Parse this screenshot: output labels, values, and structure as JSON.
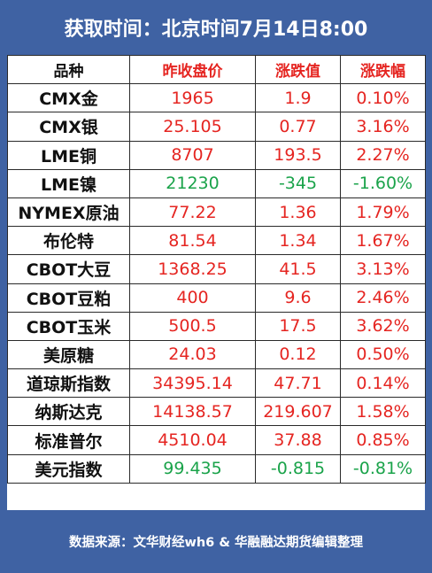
{
  "header": {
    "title": "获取时间：北京时间7月14日8:00"
  },
  "table": {
    "columns": [
      "品种",
      "昨收盘价",
      "涨跌值",
      "涨跌幅"
    ],
    "rows": [
      {
        "name": "CMX金",
        "close": "1965",
        "change": "1.9",
        "pct": "0.10%",
        "dir": "up"
      },
      {
        "name": "CMX银",
        "close": "25.105",
        "change": "0.77",
        "pct": "3.16%",
        "dir": "up"
      },
      {
        "name": "LME铜",
        "close": "8707",
        "change": "193.5",
        "pct": "2.27%",
        "dir": "up"
      },
      {
        "name": "LME镍",
        "close": "21230",
        "change": "-345",
        "pct": "-1.60%",
        "dir": "down"
      },
      {
        "name": "NYMEX原油",
        "close": "77.22",
        "change": "1.36",
        "pct": "1.79%",
        "dir": "up"
      },
      {
        "name": "布伦特",
        "close": "81.54",
        "change": "1.34",
        "pct": "1.67%",
        "dir": "up"
      },
      {
        "name": "CBOT大豆",
        "close": "1368.25",
        "change": "41.5",
        "pct": "3.13%",
        "dir": "up"
      },
      {
        "name": "CBOT豆粕",
        "close": "400",
        "change": "9.6",
        "pct": "2.46%",
        "dir": "up"
      },
      {
        "name": "CBOT玉米",
        "close": "500.5",
        "change": "17.5",
        "pct": "3.62%",
        "dir": "up"
      },
      {
        "name": "美原糖",
        "close": "24.03",
        "change": "0.12",
        "pct": "0.50%",
        "dir": "up"
      },
      {
        "name": "道琼斯指数",
        "close": "34395.14",
        "change": "47.71",
        "pct": "0.14%",
        "dir": "up"
      },
      {
        "name": "纳斯达克",
        "close": "14138.57",
        "change": "219.607",
        "pct": "1.58%",
        "dir": "up"
      },
      {
        "name": "标准普尔",
        "close": "4510.04",
        "change": "37.88",
        "pct": "0.85%",
        "dir": "up"
      },
      {
        "name": "美元指数",
        "close": "99.435",
        "change": "-0.815",
        "pct": "-0.81%",
        "dir": "down"
      }
    ]
  },
  "footer": {
    "source": "数据来源：文华财经wh6 & 华融融达期货编辑整理"
  },
  "colors": {
    "frame": "#3f62a3",
    "up": "#e52521",
    "down": "#1aa34a"
  }
}
